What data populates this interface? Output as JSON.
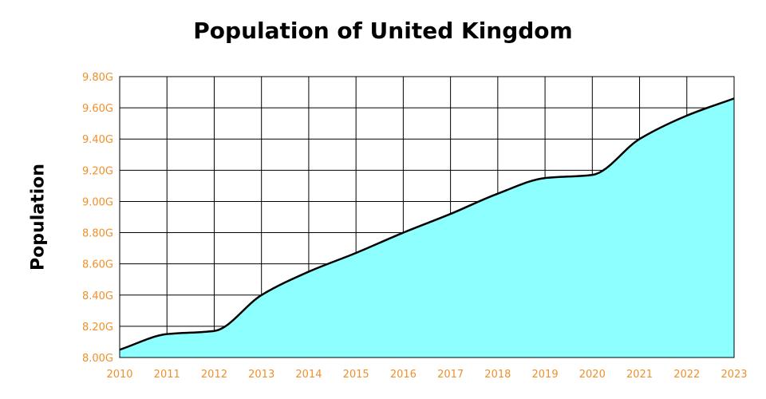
{
  "chart_data": {
    "type": "area",
    "title": "Population of United Kingdom",
    "xlabel": "",
    "ylabel": "Population",
    "x": [
      2010,
      2011,
      2012,
      2013,
      2014,
      2015,
      2016,
      2017,
      2018,
      2019,
      2020,
      2021,
      2022,
      2023
    ],
    "values": [
      8.05,
      8.15,
      8.17,
      8.4,
      8.55,
      8.67,
      8.8,
      8.92,
      9.05,
      9.15,
      9.17,
      9.4,
      9.55,
      9.66
    ],
    "value_unit": "G",
    "xlim": [
      2010,
      2023
    ],
    "ylim": [
      8.0,
      9.8
    ],
    "y_ticks": [
      8.0,
      8.2,
      8.4,
      8.6,
      8.8,
      9.0,
      9.2,
      9.4,
      9.6,
      9.8
    ],
    "y_tick_labels": [
      "8.00G",
      "8.20G",
      "8.40G",
      "8.60G",
      "8.80G",
      "9.00G",
      "9.20G",
      "9.40G",
      "9.60G",
      "9.80G"
    ],
    "x_tick_labels": [
      "2010",
      "2011",
      "2012",
      "2013",
      "2014",
      "2015",
      "2016",
      "2017",
      "2018",
      "2019",
      "2020",
      "2021",
      "2022",
      "2023"
    ],
    "grid": true,
    "fill_color": "#8effff",
    "line_color": "#000000",
    "tick_color": "#f0902a"
  }
}
